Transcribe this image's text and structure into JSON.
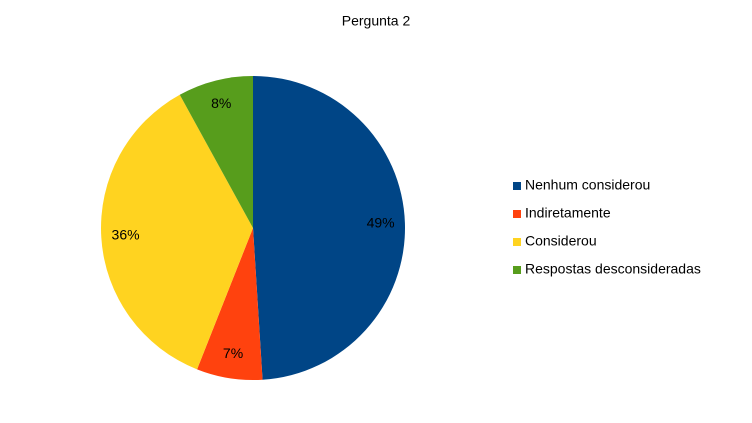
{
  "chart_data": {
    "type": "pie",
    "title": "Pergunta 2",
    "categories": [
      "Nenhum considerou",
      "Indiretamente",
      "Considerou",
      "Respostas desconsideradas"
    ],
    "values": [
      49,
      7,
      36,
      8
    ],
    "value_labels": [
      "49%",
      "7%",
      "36%",
      "8%"
    ],
    "colors": [
      "#004586",
      "#ff420e",
      "#ffd320",
      "#579d1c"
    ],
    "legend": "right"
  }
}
